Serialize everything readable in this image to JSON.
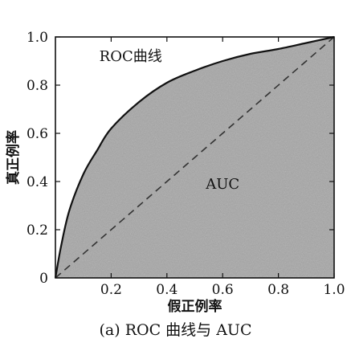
{
  "chart_data": {
    "type": "area",
    "title": "",
    "xlabel": "假正例率",
    "ylabel": "真正例率",
    "xlim": [
      0,
      1
    ],
    "ylim": [
      0,
      1
    ],
    "x_tick_labels": [
      "0.2",
      "0.4",
      "0.6",
      "0.8",
      "1.0"
    ],
    "y_tick_labels": [
      "0",
      "0.2",
      "0.4",
      "0.6",
      "0.8",
      "1.0"
    ],
    "origin_label": "0",
    "series": [
      {
        "name": "ROC曲线",
        "style": "solid",
        "x": [
          0,
          0.02,
          0.05,
          0.1,
          0.15,
          0.2,
          0.3,
          0.4,
          0.5,
          0.6,
          0.7,
          0.8,
          0.9,
          1.0
        ],
        "y": [
          0,
          0.13,
          0.28,
          0.43,
          0.53,
          0.62,
          0.73,
          0.81,
          0.86,
          0.9,
          0.93,
          0.95,
          0.975,
          1.0
        ]
      },
      {
        "name": "",
        "style": "dashed",
        "x": [
          0,
          1
        ],
        "y": [
          0,
          1
        ]
      }
    ],
    "annotations": [
      {
        "text": "ROC曲线",
        "x": 0.27,
        "y": 0.9
      },
      {
        "text": "AUC",
        "x": 0.6,
        "y": 0.37
      }
    ],
    "shaded_area_label": "AUC",
    "grid": false,
    "colors": {
      "fill": "#a6a6a6",
      "curve": "#111111",
      "diagonal": "#333333",
      "axes": "#111111"
    }
  },
  "caption": "(a) ROC 曲线与 AUC"
}
